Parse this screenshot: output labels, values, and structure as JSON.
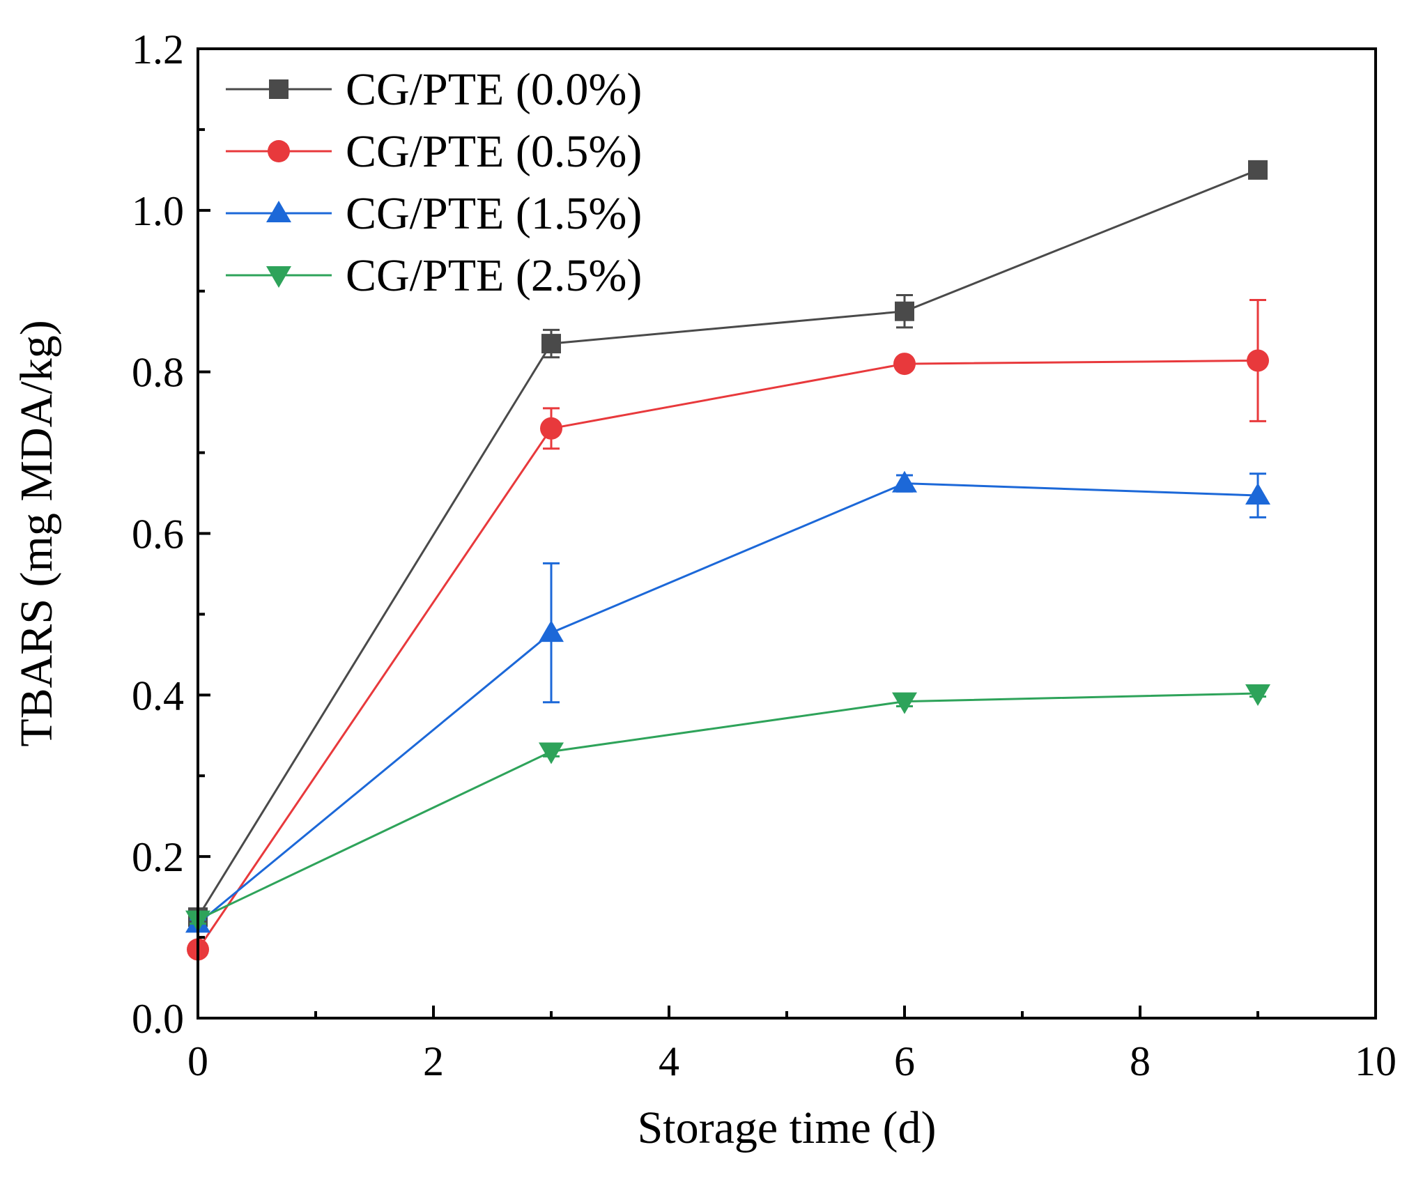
{
  "chart_data": {
    "type": "line",
    "xlabel": "Storage time (d)",
    "ylabel": "TBARS (mg MDA/kg)",
    "xlim": [
      0,
      10
    ],
    "ylim": [
      0,
      1.2
    ],
    "x_ticks": [
      0,
      2,
      4,
      6,
      8,
      10
    ],
    "y_ticks": [
      0.0,
      0.2,
      0.4,
      0.6,
      0.8,
      1.0,
      1.2
    ],
    "x_tick_labels": [
      "0",
      "2",
      "4",
      "6",
      "8",
      "10"
    ],
    "y_tick_labels": [
      "0.0",
      "0.2",
      "0.4",
      "0.6",
      "0.8",
      "1.0",
      "1.2"
    ],
    "x_minor_ticks": [
      1,
      3,
      5,
      7,
      9
    ],
    "y_minor_ticks": [
      0.1,
      0.3,
      0.5,
      0.7,
      0.9,
      1.1
    ],
    "grid": false,
    "legend_position": "top-left",
    "x": [
      0,
      3,
      6,
      9
    ],
    "series": [
      {
        "name": "CG/PTE (0.0%)",
        "color": "#4a4a4a",
        "marker": "square",
        "values": [
          0.125,
          0.835,
          0.875,
          1.05
        ],
        "errors": [
          0.005,
          0.017,
          0.02,
          0.005
        ]
      },
      {
        "name": "CG/PTE (0.5%)",
        "color": "#e8393c",
        "marker": "circle",
        "values": [
          0.085,
          0.73,
          0.81,
          0.814
        ],
        "errors": [
          0.005,
          0.025,
          0.005,
          0.075
        ]
      },
      {
        "name": "CG/PTE (1.5%)",
        "color": "#1c68d8",
        "marker": "triangle-up",
        "values": [
          0.117,
          0.477,
          0.662,
          0.647
        ],
        "errors": [
          0.005,
          0.086,
          0.01,
          0.027
        ]
      },
      {
        "name": "CG/PTE (2.5%)",
        "color": "#2ea35a",
        "marker": "triangle-down",
        "values": [
          0.122,
          0.33,
          0.392,
          0.402
        ],
        "errors": [
          0.005,
          0.006,
          0.006,
          0.004
        ]
      }
    ]
  }
}
